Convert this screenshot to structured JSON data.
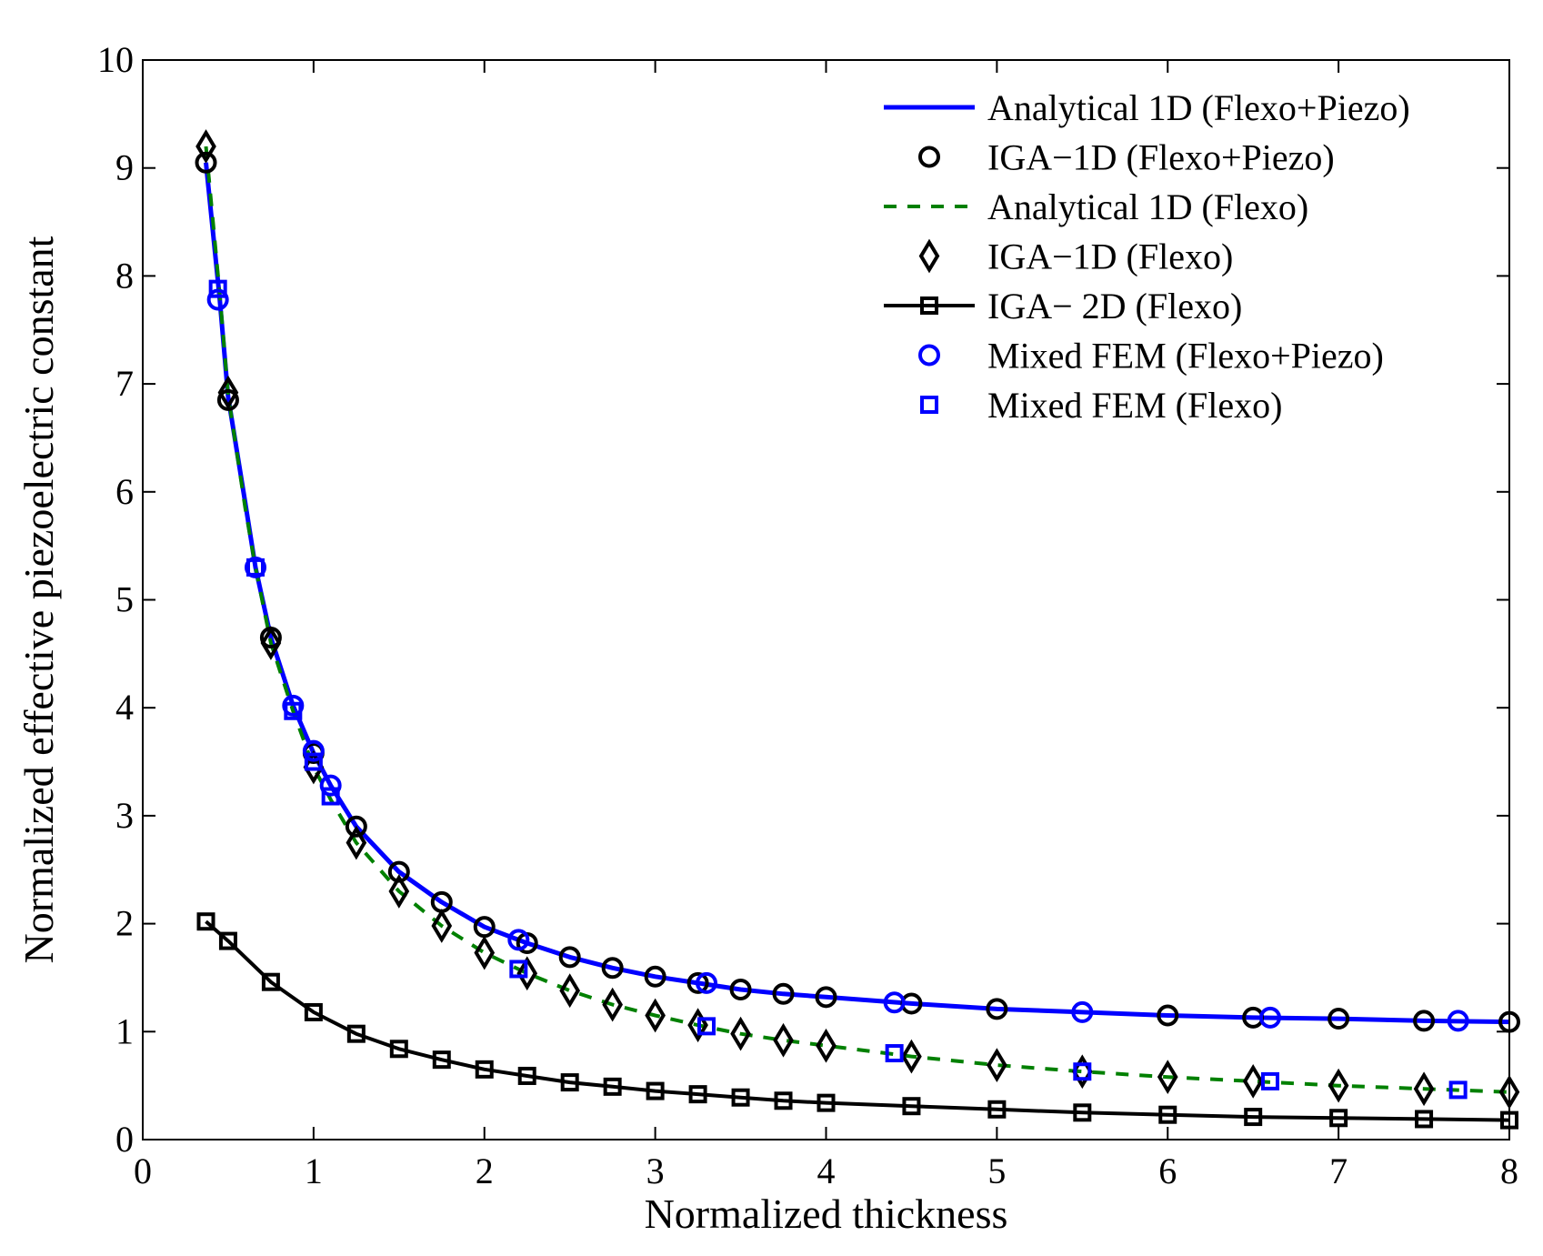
{
  "chart_data": {
    "type": "line",
    "title": "",
    "xlabel": "Normalized thickness",
    "ylabel": "Normalized effective piezoelectric constant",
    "xlim": [
      0,
      8
    ],
    "ylim": [
      0,
      10
    ],
    "xticks": [
      "0",
      "1",
      "2",
      "3",
      "4",
      "5",
      "6",
      "7",
      "8"
    ],
    "yticks": [
      "0",
      "1",
      "2",
      "3",
      "4",
      "5",
      "6",
      "7",
      "8",
      "9",
      "10"
    ],
    "grid": false,
    "legend_position": "top-right",
    "series": [
      {
        "name": "Analytical 1D (Flexo+Piezo)",
        "style": "solid-line",
        "color": "#0000ff",
        "x": [
          0.37,
          0.45,
          0.5,
          0.6,
          0.66,
          0.75,
          0.88,
          1.0,
          1.1,
          1.25,
          1.5,
          1.75,
          2.0,
          2.25,
          2.5,
          2.75,
          3.0,
          3.25,
          3.5,
          3.75,
          4.0,
          4.5,
          5.0,
          5.5,
          6.0,
          6.5,
          7.0,
          7.5,
          8.0
        ],
        "y": [
          9.05,
          7.8,
          6.88,
          5.9,
          5.3,
          4.65,
          4.02,
          3.58,
          3.28,
          2.9,
          2.48,
          2.2,
          1.97,
          1.82,
          1.69,
          1.59,
          1.51,
          1.45,
          1.39,
          1.35,
          1.32,
          1.26,
          1.21,
          1.18,
          1.15,
          1.13,
          1.12,
          1.1,
          1.09
        ]
      },
      {
        "name": "IGA−1D (Flexo+Piezo)",
        "style": "circle-markers",
        "color": "#000000",
        "x": [
          0.37,
          0.5,
          0.75,
          1.0,
          1.25,
          1.5,
          1.75,
          2.0,
          2.25,
          2.5,
          2.75,
          3.0,
          3.25,
          3.5,
          3.75,
          4.0,
          4.5,
          5.0,
          6.0,
          6.5,
          7.0,
          7.5,
          8.0
        ],
        "y": [
          9.05,
          6.85,
          4.65,
          3.58,
          2.9,
          2.48,
          2.2,
          1.97,
          1.82,
          1.69,
          1.59,
          1.51,
          1.45,
          1.39,
          1.35,
          1.32,
          1.26,
          1.21,
          1.15,
          1.13,
          1.12,
          1.1,
          1.09
        ]
      },
      {
        "name": "Analytical 1D (Flexo)",
        "style": "dashed-line",
        "color": "#008000",
        "x": [
          0.37,
          0.45,
          0.5,
          0.6,
          0.66,
          0.75,
          0.88,
          1.0,
          1.1,
          1.25,
          1.5,
          1.75,
          2.0,
          2.25,
          2.5,
          2.75,
          3.0,
          3.25,
          3.5,
          3.75,
          4.0,
          4.5,
          5.0,
          5.5,
          6.0,
          6.5,
          7.0,
          7.5,
          8.0
        ],
        "y": [
          9.2,
          7.85,
          6.9,
          5.85,
          5.3,
          4.6,
          3.97,
          3.45,
          3.15,
          2.75,
          2.3,
          1.98,
          1.73,
          1.54,
          1.38,
          1.25,
          1.15,
          1.06,
          0.98,
          0.92,
          0.87,
          0.77,
          0.69,
          0.63,
          0.58,
          0.54,
          0.5,
          0.47,
          0.44
        ]
      },
      {
        "name": "IGA−1D (Flexo)",
        "style": "diamond-markers",
        "color": "#000000",
        "x": [
          0.37,
          0.5,
          0.75,
          1.0,
          1.25,
          1.5,
          1.75,
          2.0,
          2.25,
          2.5,
          2.75,
          3.0,
          3.25,
          3.5,
          3.75,
          4.0,
          4.5,
          5.0,
          5.5,
          6.0,
          6.5,
          7.0,
          7.5,
          8.0
        ],
        "y": [
          9.2,
          6.92,
          4.6,
          3.45,
          2.75,
          2.3,
          1.98,
          1.73,
          1.54,
          1.38,
          1.25,
          1.15,
          1.06,
          0.98,
          0.92,
          0.87,
          0.77,
          0.69,
          0.63,
          0.58,
          0.54,
          0.5,
          0.47,
          0.44
        ]
      },
      {
        "name": "IGA− 2D (Flexo)",
        "style": "solid-line-square-markers",
        "color": "#000000",
        "x": [
          0.37,
          0.5,
          0.75,
          1.0,
          1.25,
          1.5,
          1.75,
          2.0,
          2.25,
          2.5,
          2.75,
          3.0,
          3.25,
          3.5,
          3.75,
          4.0,
          4.5,
          5.0,
          5.5,
          6.0,
          6.5,
          7.0,
          7.5,
          8.0
        ],
        "y": [
          2.02,
          1.84,
          1.46,
          1.18,
          0.98,
          0.84,
          0.74,
          0.65,
          0.59,
          0.53,
          0.49,
          0.45,
          0.42,
          0.39,
          0.36,
          0.34,
          0.31,
          0.28,
          0.25,
          0.23,
          0.21,
          0.2,
          0.19,
          0.18
        ]
      },
      {
        "name": "Mixed FEM (Flexo+Piezo)",
        "style": "circle-markers",
        "color": "#0000ff",
        "x": [
          0.44,
          0.66,
          0.88,
          1.0,
          1.1,
          2.2,
          3.3,
          4.4,
          5.5,
          6.6,
          7.7
        ],
        "y": [
          7.78,
          5.3,
          4.02,
          3.6,
          3.28,
          1.85,
          1.45,
          1.27,
          1.18,
          1.13,
          1.1
        ]
      },
      {
        "name": "Mixed FEM (Flexo)",
        "style": "square-markers",
        "color": "#0000ff",
        "x": [
          0.44,
          0.66,
          0.88,
          1.0,
          1.1,
          2.2,
          3.3,
          4.4,
          5.5,
          6.6,
          7.7
        ],
        "y": [
          7.88,
          5.3,
          3.97,
          3.5,
          3.18,
          1.58,
          1.05,
          0.8,
          0.63,
          0.54,
          0.46
        ]
      }
    ]
  }
}
